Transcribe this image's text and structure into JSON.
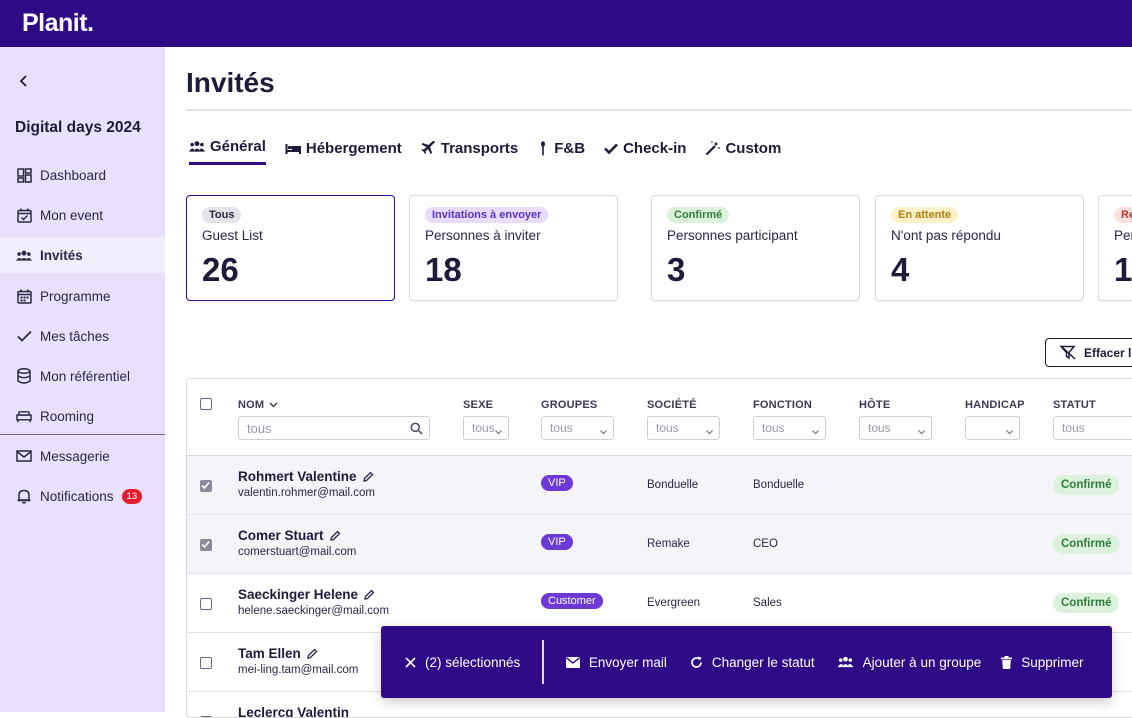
{
  "app": {
    "logo": "Planit."
  },
  "sidebar": {
    "event_name": "Digital days 2024",
    "items": [
      {
        "label": "Dashboard",
        "icon": "dashboard-icon"
      },
      {
        "label": "Mon event",
        "icon": "calendar-check-icon"
      },
      {
        "label": "Invités",
        "icon": "users-icon",
        "active": true
      },
      {
        "label": "Programme",
        "icon": "calendar-icon"
      },
      {
        "label": "Mes tâches",
        "icon": "check-icon"
      },
      {
        "label": "Mon référentiel",
        "icon": "database-icon"
      },
      {
        "label": "Rooming",
        "icon": "bed-icon"
      },
      {
        "label": "Messagerie",
        "icon": "mail-icon"
      },
      {
        "label": "Notifications",
        "icon": "bell-icon",
        "badge": "13"
      }
    ]
  },
  "page": {
    "title": "Invités"
  },
  "tabs": [
    {
      "label": "Général",
      "icon": "users-icon",
      "active": true
    },
    {
      "label": "Hébergement",
      "icon": "bed-icon"
    },
    {
      "label": "Transports",
      "icon": "plane-icon"
    },
    {
      "label": "F&B",
      "icon": "utensil-icon"
    },
    {
      "label": "Check-in",
      "icon": "check-icon"
    },
    {
      "label": "Custom",
      "icon": "magic-wand-icon"
    }
  ],
  "cards": [
    {
      "pill": "Tous",
      "label": "Guest List",
      "value": "26",
      "pill_bg": "#e4e4ea",
      "pill_fg": "#2a2747"
    },
    {
      "pill": "Invitations à envoyer",
      "label": "Personnes à inviter",
      "value": "18",
      "pill_bg": "#e7dcfb",
      "pill_fg": "#5b2fc9"
    },
    {
      "pill": "Confirmé",
      "label": "Personnes participant",
      "value": "3",
      "pill_bg": "#dcf2dd",
      "pill_fg": "#2f7d3a"
    },
    {
      "pill": "En attente",
      "label": "N'ont pas répondu",
      "value": "4",
      "pill_bg": "#fdf1c7",
      "pill_fg": "#b07d0a"
    },
    {
      "pill": "Re",
      "label": "Per",
      "value": "1",
      "pill_bg": "#fde1df",
      "pill_fg": "#c0392b"
    }
  ],
  "toolbar": {
    "clear_filters_label": "Effacer le"
  },
  "table": {
    "columns": {
      "name": "NOM",
      "sex": "SEXE",
      "groups": "GROUPES",
      "company": "SOCIÉTÉ",
      "function": "FONCTION",
      "host": "HÔTE",
      "handicap": "HANDICAP",
      "status": "STATUT"
    },
    "filters": {
      "name_placeholder": "tous",
      "sex": "tous",
      "groups": "tous",
      "company": "tous",
      "function": "tous",
      "host": "tous",
      "handicap": "",
      "status": "tous"
    },
    "rows": [
      {
        "name": "Rohmert Valentine",
        "email": "valentin.rohmer@mail.com",
        "group": "VIP",
        "company": "Bonduelle",
        "function": "Bonduelle",
        "status": "Confirmé",
        "selected": true
      },
      {
        "name": "Comer Stuart",
        "email": "comerstuart@mail.com",
        "group": "VIP",
        "company": "Remake",
        "function": "CEO",
        "status": "Confirmé",
        "selected": true
      },
      {
        "name": "Saeckinger Helene",
        "email": "helene.saeckinger@mail.com",
        "group": "Customer",
        "company": "Evergreen",
        "function": "Sales",
        "status": "Confirmé",
        "selected": false
      },
      {
        "name": "Tam Ellen",
        "email": "mei-ling.tam@mail.com",
        "group": "",
        "company": "",
        "function": "",
        "status": "",
        "selected": false
      },
      {
        "name": "Leclercq Valentin",
        "email": "",
        "group": "",
        "company": "",
        "function": "",
        "status": "",
        "selected": false
      }
    ]
  },
  "actionbar": {
    "selected_label": "(2) sélectionnés",
    "send_mail": "Envoyer mail",
    "change_status": "Changer le statut",
    "add_to_group": "Ajouter à un groupe",
    "delete": "Supprimer"
  }
}
